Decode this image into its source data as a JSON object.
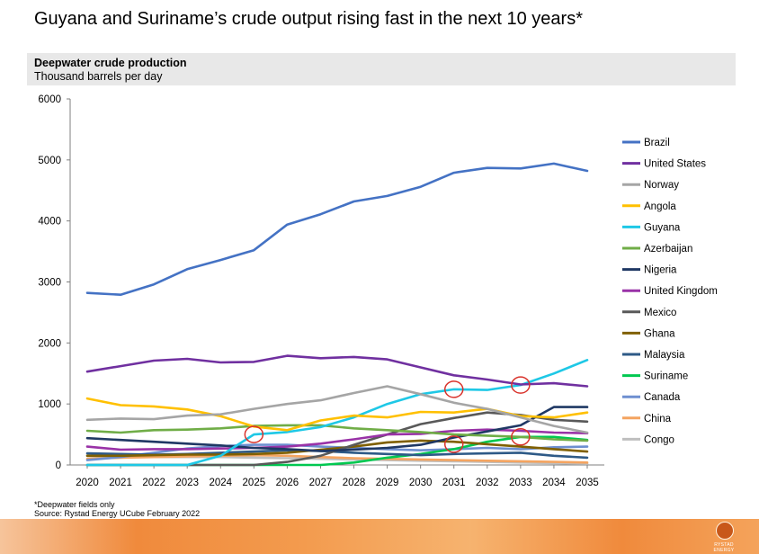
{
  "header": {
    "title": "Guyana and Suriname’s crude output rising fast in the next 10 years*",
    "subtitle": "Deepwater crude production",
    "units": "Thousand barrels per day"
  },
  "footer": {
    "note": "*Deepwater fields only",
    "source": "Source: Rystad Energy UCube February 2022",
    "logo_text": "RYSTAD ENERGY"
  },
  "colors": {
    "accent": "#f08a3c",
    "highlight_circle": "#d9322b"
  },
  "chart_data": {
    "type": "line",
    "title": "Deepwater crude production",
    "ylabel": "Thousand barrels per day",
    "xlabel": "",
    "ylim": [
      0,
      6000
    ],
    "yticks": [
      0,
      1000,
      2000,
      3000,
      4000,
      5000,
      6000
    ],
    "grid": false,
    "legend_position": "right",
    "categories": [
      "2020",
      "2021",
      "2022",
      "2023",
      "2024",
      "2025",
      "2026",
      "2027",
      "2028",
      "2029",
      "2030",
      "2031",
      "2032",
      "2033",
      "2034",
      "2035"
    ],
    "series": [
      {
        "name": "Brazil",
        "color": "#4472c4",
        "values": [
          2820,
          2790,
          2960,
          3210,
          3360,
          3520,
          3940,
          4110,
          4320,
          4410,
          4560,
          4790,
          4870,
          4860,
          4940,
          4820
        ]
      },
      {
        "name": "United States",
        "color": "#7030a0",
        "values": [
          1530,
          1620,
          1710,
          1740,
          1680,
          1690,
          1790,
          1750,
          1770,
          1730,
          1600,
          1470,
          1400,
          1320,
          1340,
          1290
        ]
      },
      {
        "name": "Norway",
        "color": "#a5a5a5",
        "values": [
          740,
          760,
          750,
          810,
          830,
          920,
          1000,
          1060,
          1180,
          1290,
          1160,
          1020,
          920,
          780,
          640,
          530
        ]
      },
      {
        "name": "Angola",
        "color": "#ffc000",
        "values": [
          1090,
          980,
          960,
          910,
          800,
          630,
          570,
          730,
          810,
          780,
          870,
          860,
          920,
          800,
          780,
          860
        ]
      },
      {
        "name": "Guyana",
        "color": "#1ec8e6",
        "values": [
          0,
          0,
          0,
          0,
          150,
          500,
          540,
          620,
          780,
          1000,
          1160,
          1240,
          1230,
          1310,
          1500,
          1720
        ]
      },
      {
        "name": "Azerbaijan",
        "color": "#70ad47",
        "values": [
          560,
          530,
          570,
          580,
          600,
          640,
          650,
          650,
          600,
          570,
          540,
          500,
          480,
          460,
          420,
          400
        ]
      },
      {
        "name": "Nigeria",
        "color": "#1f3864",
        "values": [
          440,
          410,
          380,
          350,
          320,
          280,
          260,
          230,
          250,
          280,
          330,
          450,
          550,
          650,
          950,
          950
        ]
      },
      {
        "name": "United Kingdom",
        "color": "#9932a7",
        "values": [
          300,
          250,
          260,
          260,
          270,
          280,
          300,
          350,
          420,
          500,
          510,
          560,
          580,
          560,
          530,
          520
        ]
      },
      {
        "name": "Mexico",
        "color": "#595959",
        "values": [
          0,
          0,
          0,
          0,
          0,
          0,
          50,
          150,
          330,
          500,
          670,
          770,
          860,
          820,
          740,
          710
        ]
      },
      {
        "name": "Ghana",
        "color": "#806000",
        "values": [
          150,
          150,
          160,
          170,
          170,
          180,
          200,
          250,
          300,
          370,
          400,
          380,
          340,
          300,
          260,
          220
        ]
      },
      {
        "name": "Malaysia",
        "color": "#2e5a87",
        "values": [
          190,
          180,
          170,
          180,
          200,
          220,
          240,
          230,
          200,
          180,
          160,
          180,
          190,
          200,
          150,
          120
        ]
      },
      {
        "name": "Suriname",
        "color": "#00c850",
        "values": [
          0,
          0,
          0,
          0,
          0,
          0,
          0,
          0,
          40,
          120,
          180,
          260,
          380,
          460,
          460,
          410
        ]
      },
      {
        "name": "Canada",
        "color": "#6e8fd0",
        "values": [
          80,
          130,
          200,
          270,
          310,
          330,
          330,
          300,
          280,
          260,
          240,
          260,
          280,
          260,
          290,
          300
        ]
      },
      {
        "name": "China",
        "color": "#f4a460",
        "values": [
          100,
          120,
          130,
          140,
          150,
          160,
          150,
          130,
          110,
          100,
          90,
          80,
          70,
          60,
          50,
          40
        ]
      },
      {
        "name": "Congo",
        "color": "#bfbfbf",
        "values": [
          150,
          140,
          130,
          130,
          130,
          120,
          110,
          100,
          90,
          80,
          70,
          60,
          50,
          40,
          30,
          20
        ]
      }
    ],
    "annotations": [
      {
        "type": "circle",
        "x": "2025",
        "y": 500
      },
      {
        "type": "circle",
        "x": "2031",
        "y": 1240
      },
      {
        "type": "circle",
        "x": "2033",
        "y": 1310
      },
      {
        "type": "circle",
        "x": "2031",
        "y": 340
      },
      {
        "type": "circle",
        "x": "2033",
        "y": 460
      }
    ]
  }
}
